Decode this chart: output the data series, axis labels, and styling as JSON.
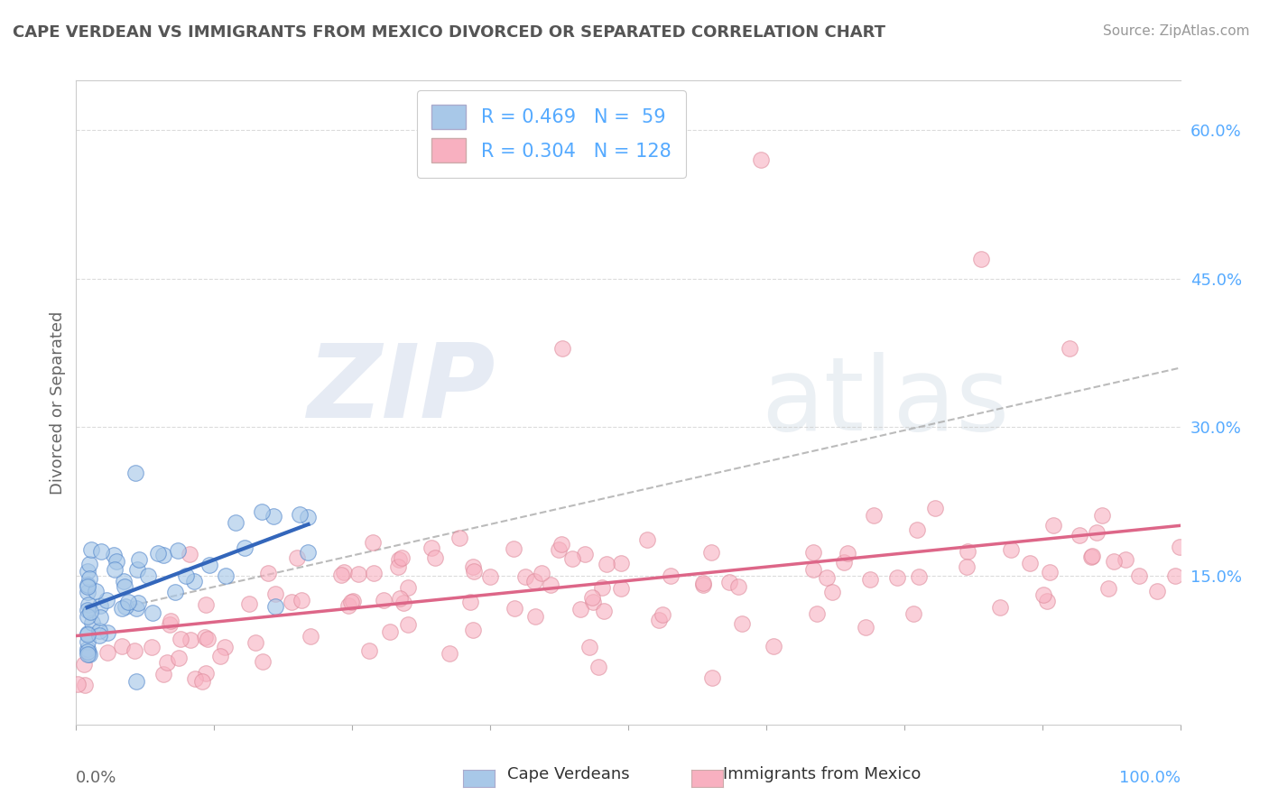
{
  "title": "CAPE VERDEAN VS IMMIGRANTS FROM MEXICO DIVORCED OR SEPARATED CORRELATION CHART",
  "source": "Source: ZipAtlas.com",
  "ylabel": "Divorced or Separated",
  "legend_label1": "Cape Verdeans",
  "legend_label2": "Immigrants from Mexico",
  "R1": 0.469,
  "N1": 59,
  "R2": 0.304,
  "N2": 128,
  "color_blue_fill": "#a8c8e8",
  "color_blue_edge": "#5588cc",
  "color_blue_line": "#3366bb",
  "color_pink_fill": "#f8b0c0",
  "color_pink_edge": "#dd8899",
  "color_pink_line": "#dd6688",
  "color_dashed": "#aaaaaa",
  "color_hline": "#cccccc",
  "xlim": [
    0.0,
    1.0
  ],
  "ylim": [
    0.0,
    0.65
  ],
  "yticks_right": [
    0.15,
    0.3,
    0.45,
    0.6
  ],
  "ytick_labels_right": [
    "15.0%",
    "30.0%",
    "45.0%",
    "60.0%"
  ],
  "background_color": "#ffffff",
  "watermark_zip": "ZIP",
  "watermark_atlas": "atlas",
  "title_color": "#555555",
  "source_color": "#999999",
  "axis_label_color": "#666666",
  "tick_color_blue": "#55aaff"
}
